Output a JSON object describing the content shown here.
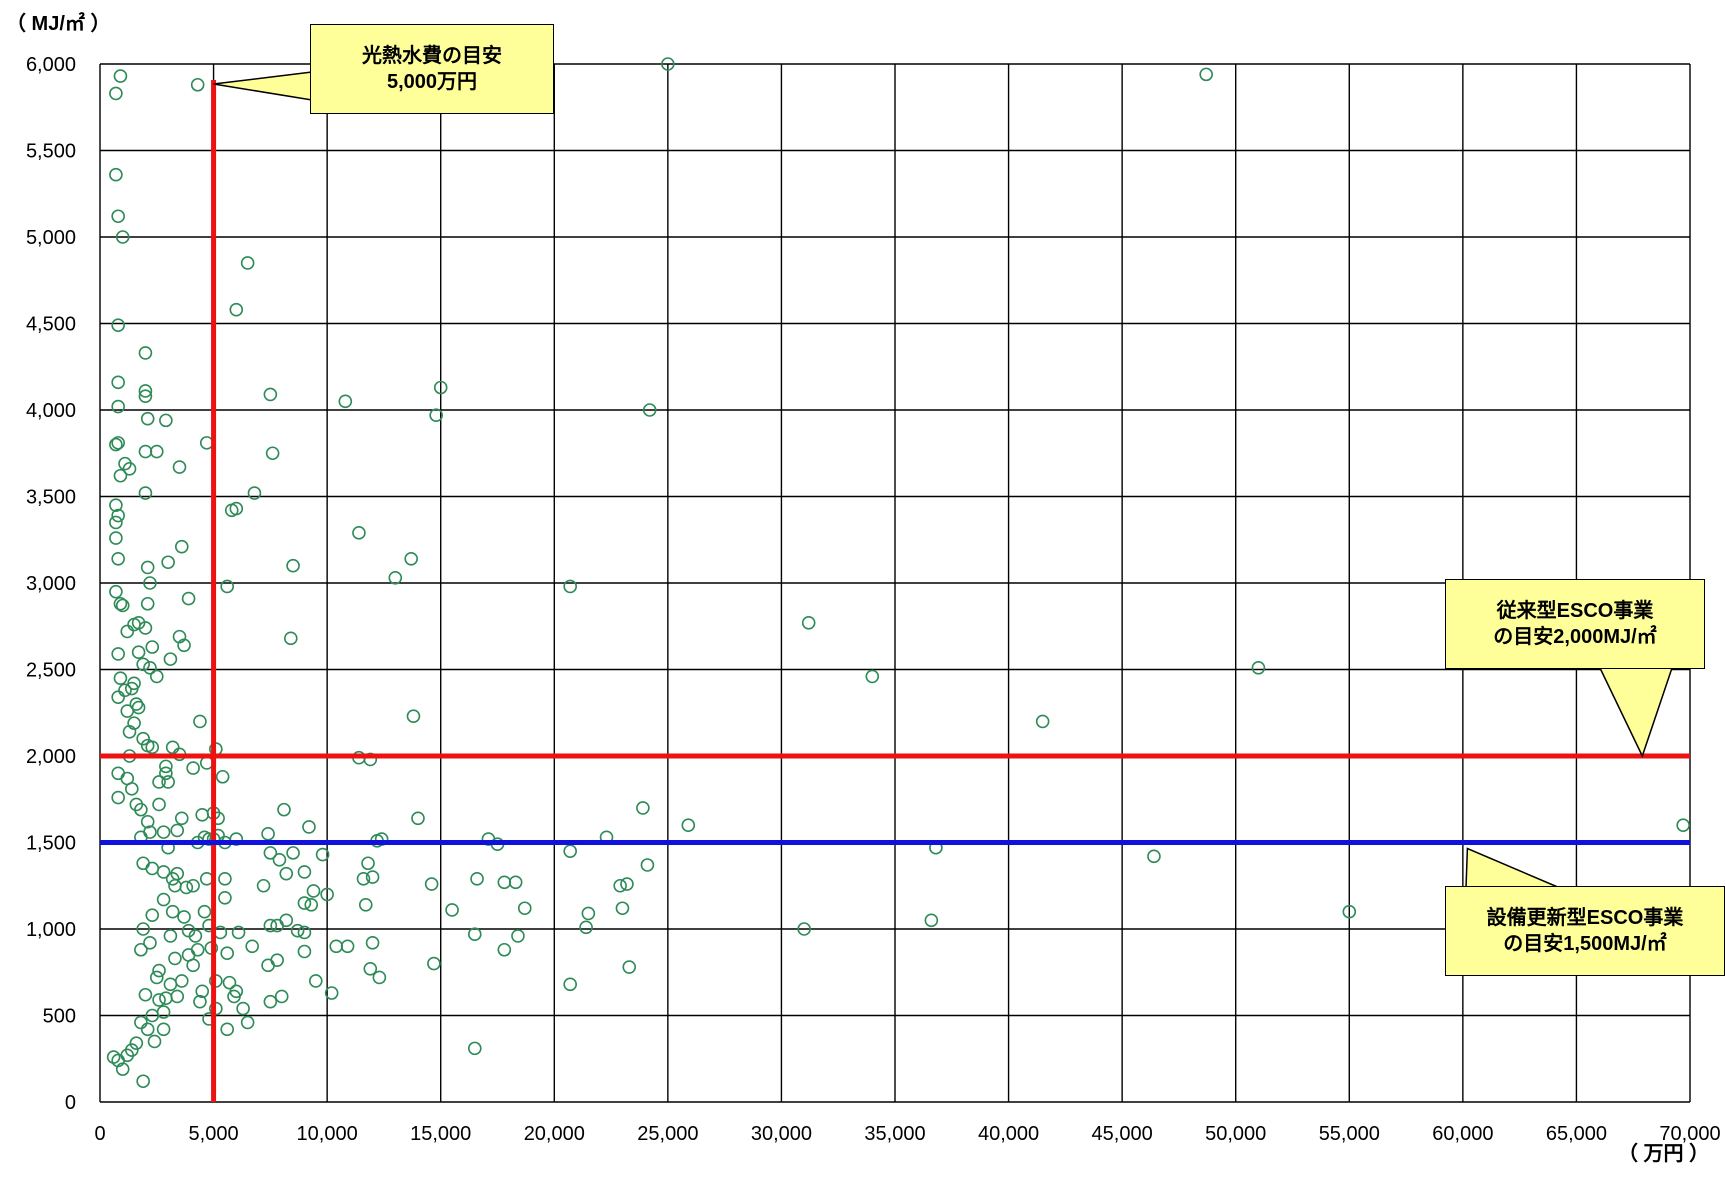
{
  "chart_data": {
    "type": "scatter",
    "title": "",
    "xlabel": "（ 万円 ）",
    "ylabel": "（ MJ/㎡ ）",
    "xlim": [
      0,
      70000
    ],
    "ylim": [
      0,
      6000
    ],
    "x_ticks": [
      0,
      5000,
      10000,
      15000,
      20000,
      25000,
      30000,
      35000,
      40000,
      45000,
      50000,
      55000,
      60000,
      65000,
      70000
    ],
    "y_ticks": [
      0,
      500,
      1000,
      1500,
      2000,
      2500,
      3000,
      3500,
      4000,
      4500,
      5000,
      5500,
      6000
    ],
    "x_tick_labels": [
      "0",
      "5,000",
      "10,000",
      "15,000",
      "20,000",
      "25,000",
      "30,000",
      "35,000",
      "40,000",
      "45,000",
      "50,000",
      "55,000",
      "60,000",
      "65,000",
      "70,000"
    ],
    "y_tick_labels": [
      "0",
      "500",
      "1,000",
      "1,500",
      "2,000",
      "2,500",
      "3,000",
      "3,500",
      "4,000",
      "4,500",
      "5,000",
      "5,500",
      "6,000"
    ],
    "grid": true,
    "marker_color": "#2e8b57",
    "reference_lines": [
      {
        "orientation": "vertical",
        "value": 5000,
        "color": "#ee1111"
      },
      {
        "orientation": "horizontal",
        "value": 2000,
        "color": "#ee1111"
      },
      {
        "orientation": "horizontal",
        "value": 1500,
        "color": "#1111dd"
      }
    ],
    "annotations": [
      {
        "text_lines": [
          "光熱水費の目安",
          "5,000万円"
        ],
        "color": "#ffff99"
      },
      {
        "text_lines": [
          "従来型ESCO事業",
          "の目安2,000MJ/㎡"
        ],
        "color": "#ffff99"
      },
      {
        "text_lines": [
          "設備更新型ESCO事業",
          "の目安1,500MJ/㎡"
        ],
        "color": "#ffff99"
      }
    ],
    "scatter_points": [
      [
        700,
        5830
      ],
      [
        900,
        5930
      ],
      [
        4300,
        5880
      ],
      [
        25000,
        6000
      ],
      [
        48700,
        5940
      ],
      [
        700,
        5360
      ],
      [
        800,
        5120
      ],
      [
        1000,
        5000
      ],
      [
        800,
        4490
      ],
      [
        6500,
        4850
      ],
      [
        6000,
        4580
      ],
      [
        800,
        4160
      ],
      [
        2000,
        4330
      ],
      [
        2000,
        4110
      ],
      [
        2000,
        4080
      ],
      [
        800,
        4020
      ],
      [
        2100,
        3950
      ],
      [
        2900,
        3940
      ],
      [
        7500,
        4090
      ],
      [
        10800,
        4050
      ],
      [
        14800,
        3970
      ],
      [
        15000,
        4130
      ],
      [
        24200,
        4000
      ],
      [
        800,
        3810
      ],
      [
        1100,
        3690
      ],
      [
        900,
        3620
      ],
      [
        1300,
        3660
      ],
      [
        2000,
        3760
      ],
      [
        2500,
        3760
      ],
      [
        3500,
        3670
      ],
      [
        4700,
        3810
      ],
      [
        7600,
        3750
      ],
      [
        6800,
        3520
      ],
      [
        2000,
        3520
      ],
      [
        5800,
        3420
      ],
      [
        6000,
        3430
      ],
      [
        700,
        3350
      ],
      [
        700,
        3450
      ],
      [
        800,
        3390
      ],
      [
        700,
        3260
      ],
      [
        800,
        3140
      ],
      [
        3000,
        3120
      ],
      [
        3600,
        3210
      ],
      [
        8500,
        3100
      ],
      [
        11400,
        3290
      ],
      [
        13700,
        3140
      ],
      [
        13000,
        3030
      ],
      [
        5600,
        2980
      ],
      [
        2100,
        3090
      ],
      [
        2200,
        3000
      ],
      [
        20700,
        2980
      ],
      [
        700,
        2950
      ],
      [
        900,
        2880
      ],
      [
        1000,
        2870
      ],
      [
        2100,
        2880
      ],
      [
        3900,
        2910
      ],
      [
        1700,
        2770
      ],
      [
        1500,
        2760
      ],
      [
        31200,
        2770
      ],
      [
        3500,
        2690
      ],
      [
        1200,
        2720
      ],
      [
        8400,
        2680
      ],
      [
        2000,
        2740
      ],
      [
        3700,
        2640
      ],
      [
        2300,
        2630
      ],
      [
        800,
        2590
      ],
      [
        3100,
        2560
      ],
      [
        34000,
        2460
      ],
      [
        51000,
        2510
      ],
      [
        1900,
        2530
      ],
      [
        2200,
        2510
      ],
      [
        900,
        2450
      ],
      [
        1400,
        2390
      ],
      [
        800,
        2340
      ],
      [
        1600,
        2300
      ],
      [
        1200,
        2260
      ],
      [
        2500,
        2460
      ],
      [
        13800,
        2230
      ],
      [
        4400,
        2200
      ],
      [
        41500,
        2200
      ],
      [
        1500,
        2190
      ],
      [
        1300,
        2140
      ],
      [
        2300,
        2050
      ],
      [
        3500,
        2010
      ],
      [
        3200,
        2050
      ],
      [
        5100,
        2040
      ],
      [
        2100,
        2060
      ],
      [
        11400,
        1990
      ],
      [
        11900,
        1980
      ],
      [
        4700,
        1960
      ],
      [
        2900,
        1940
      ],
      [
        800,
        1900
      ],
      [
        1200,
        1870
      ],
      [
        2900,
        1900
      ],
      [
        5400,
        1880
      ],
      [
        3000,
        1850
      ],
      [
        1400,
        1810
      ],
      [
        800,
        1760
      ],
      [
        1600,
        1720
      ],
      [
        1800,
        1690
      ],
      [
        2600,
        1720
      ],
      [
        8100,
        1690
      ],
      [
        4500,
        1660
      ],
      [
        5000,
        1670
      ],
      [
        3600,
        1640
      ],
      [
        5200,
        1640
      ],
      [
        14000,
        1640
      ],
      [
        23900,
        1700
      ],
      [
        25900,
        1600
      ],
      [
        12400,
        1520
      ],
      [
        12200,
        1510
      ],
      [
        17100,
        1520
      ],
      [
        17500,
        1490
      ],
      [
        22300,
        1530
      ],
      [
        69700,
        1600
      ],
      [
        9200,
        1590
      ],
      [
        7400,
        1550
      ],
      [
        6000,
        1520
      ],
      [
        2200,
        1560
      ],
      [
        2800,
        1560
      ],
      [
        3400,
        1570
      ],
      [
        1800,
        1530
      ],
      [
        4600,
        1530
      ],
      [
        4800,
        1520
      ],
      [
        4300,
        1500
      ],
      [
        5500,
        1500
      ],
      [
        36800,
        1470
      ],
      [
        46400,
        1420
      ],
      [
        20700,
        1450
      ],
      [
        7500,
        1440
      ],
      [
        8500,
        1440
      ],
      [
        9800,
        1430
      ],
      [
        7900,
        1400
      ],
      [
        11800,
        1380
      ],
      [
        12000,
        1300
      ],
      [
        11600,
        1290
      ],
      [
        8200,
        1320
      ],
      [
        9000,
        1330
      ],
      [
        16600,
        1290
      ],
      [
        17800,
        1270
      ],
      [
        18300,
        1270
      ],
      [
        14600,
        1260
      ],
      [
        23200,
        1260
      ],
      [
        22900,
        1250
      ],
      [
        24100,
        1370
      ],
      [
        5500,
        1290
      ],
      [
        4700,
        1290
      ],
      [
        4100,
        1250
      ],
      [
        3800,
        1240
      ],
      [
        3200,
        1290
      ],
      [
        3400,
        1320
      ],
      [
        2800,
        1330
      ],
      [
        2300,
        1350
      ],
      [
        1900,
        1380
      ],
      [
        7200,
        1250
      ],
      [
        9400,
        1220
      ],
      [
        5500,
        1180
      ],
      [
        10000,
        1200
      ],
      [
        9300,
        1140
      ],
      [
        9000,
        1150
      ],
      [
        11700,
        1140
      ],
      [
        15500,
        1110
      ],
      [
        18700,
        1120
      ],
      [
        21500,
        1090
      ],
      [
        23000,
        1120
      ],
      [
        55000,
        1100
      ],
      [
        36600,
        1050
      ],
      [
        8200,
        1050
      ],
      [
        31000,
        1000
      ],
      [
        21400,
        1010
      ],
      [
        7500,
        1020
      ],
      [
        7800,
        1020
      ],
      [
        8700,
        990
      ],
      [
        9000,
        980
      ],
      [
        4200,
        960
      ],
      [
        5300,
        980
      ],
      [
        6100,
        980
      ],
      [
        10400,
        900
      ],
      [
        10900,
        900
      ],
      [
        12000,
        920
      ],
      [
        18400,
        960
      ],
      [
        16500,
        970
      ],
      [
        7400,
        790
      ],
      [
        7800,
        820
      ],
      [
        6700,
        900
      ],
      [
        5600,
        860
      ],
      [
        9000,
        870
      ],
      [
        17800,
        880
      ],
      [
        14700,
        800
      ],
      [
        23300,
        780
      ],
      [
        11900,
        770
      ],
      [
        12300,
        720
      ],
      [
        9500,
        700
      ],
      [
        10200,
        630
      ],
      [
        6000,
        640
      ],
      [
        8000,
        610
      ],
      [
        5900,
        610
      ],
      [
        7500,
        580
      ],
      [
        4400,
        580
      ],
      [
        3400,
        610
      ],
      [
        2900,
        600
      ],
      [
        6300,
        540
      ],
      [
        6500,
        460
      ],
      [
        5600,
        420
      ],
      [
        4800,
        480
      ],
      [
        5100,
        540
      ],
      [
        2400,
        350
      ],
      [
        2800,
        420
      ],
      [
        20700,
        680
      ],
      [
        16500,
        310
      ],
      [
        1900,
        120
      ],
      [
        1000,
        190
      ],
      [
        4900,
        890
      ],
      [
        4300,
        880
      ],
      [
        3300,
        830
      ],
      [
        2600,
        760
      ],
      [
        4100,
        790
      ],
      [
        5100,
        700
      ],
      [
        5700,
        690
      ],
      [
        4500,
        640
      ],
      [
        3600,
        700
      ],
      [
        3100,
        680
      ],
      [
        2500,
        720
      ],
      [
        1900,
        1000
      ],
      [
        2300,
        1080
      ],
      [
        3700,
        1070
      ],
      [
        2800,
        1170
      ],
      [
        4600,
        1100
      ],
      [
        3900,
        990
      ],
      [
        3100,
        960
      ],
      [
        4800,
        1020
      ],
      [
        1800,
        880
      ],
      [
        2200,
        920
      ],
      [
        3900,
        850
      ],
      [
        2000,
        620
      ],
      [
        2600,
        590
      ],
      [
        2300,
        500
      ],
      [
        1800,
        460
      ],
      [
        2800,
        520
      ],
      [
        1600,
        340
      ],
      [
        1400,
        300
      ],
      [
        2100,
        420
      ],
      [
        600,
        260
      ],
      [
        800,
        240
      ],
      [
        1200,
        270
      ],
      [
        700,
        3800
      ],
      [
        4100,
        1930
      ],
      [
        5200,
        1540
      ],
      [
        5000,
        1520
      ],
      [
        1900,
        2100
      ],
      [
        2600,
        1850
      ],
      [
        3000,
        1470
      ],
      [
        3200,
        1100
      ],
      [
        1700,
        2600
      ],
      [
        1500,
        2420
      ],
      [
        1300,
        2000
      ],
      [
        2100,
        1620
      ],
      [
        3300,
        1250
      ],
      [
        1100,
        2380
      ],
      [
        1700,
        2280
      ]
    ]
  }
}
